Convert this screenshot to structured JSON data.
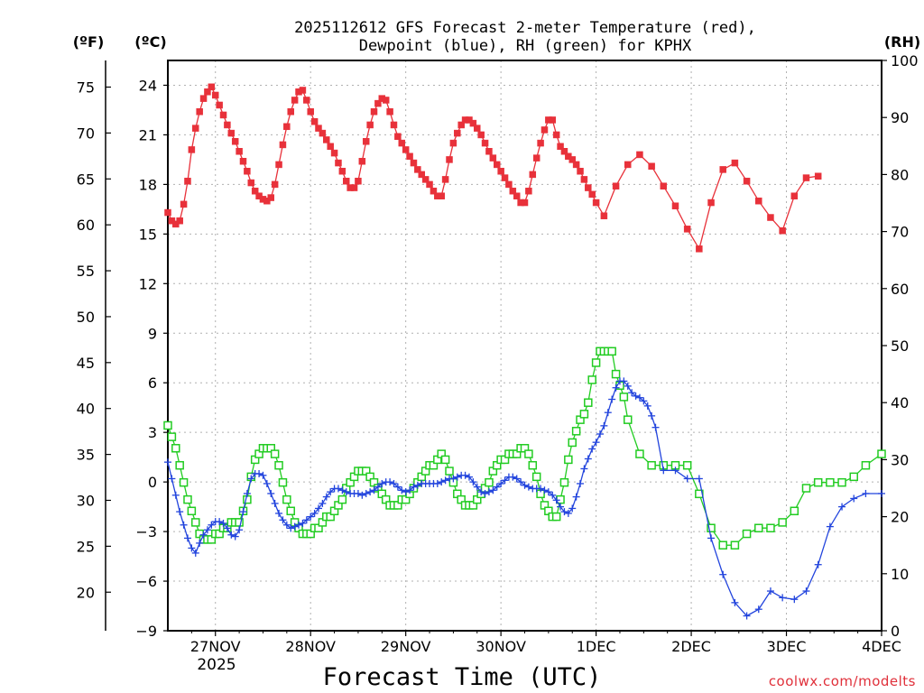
{
  "chart_data": {
    "type": "line",
    "title_line1": "2025112612 GFS Forecast 2-meter Temperature (red),",
    "title_line2": "Dewpoint (blue), RH (green) for KPHX",
    "xlabel": "Forecast Time (UTC)",
    "watermark": "coolwx.com/modelts",
    "unit_f": "(ºF)",
    "unit_c": "(ºC)",
    "unit_rh": "(RH)",
    "year_label": "2025",
    "x_range_hours": [
      12,
      192
    ],
    "c_range": [
      -9,
      25.5
    ],
    "rh_range": [
      0,
      100
    ],
    "x_ticks": [
      {
        "h": 24,
        "label": "27NOV"
      },
      {
        "h": 48,
        "label": "28NOV"
      },
      {
        "h": 72,
        "label": "29NOV"
      },
      {
        "h": 96,
        "label": "30NOV"
      },
      {
        "h": 120,
        "label": "1DEC"
      },
      {
        "h": 144,
        "label": "2DEC"
      },
      {
        "h": 168,
        "label": "3DEC"
      },
      {
        "h": 192,
        "label": "4DEC"
      }
    ],
    "c_ticks": [
      "24",
      "21",
      "18",
      "15",
      "12",
      "9",
      "6",
      "3",
      "0",
      "−3",
      "−6",
      "−9"
    ],
    "f_ticks": [
      "75",
      "70",
      "65",
      "60",
      "55",
      "50",
      "45",
      "40",
      "35",
      "30",
      "25",
      "20"
    ],
    "rh_ticks": [
      "100",
      "90",
      "80",
      "70",
      "60",
      "50",
      "40",
      "30",
      "20",
      "10",
      "0"
    ],
    "temperature_c": [
      [
        12,
        16.3
      ],
      [
        13,
        15.8
      ],
      [
        14,
        15.6
      ],
      [
        15,
        15.8
      ],
      [
        16,
        16.8
      ],
      [
        17,
        18.2
      ],
      [
        18,
        20.1
      ],
      [
        19,
        21.4
      ],
      [
        20,
        22.4
      ],
      [
        21,
        23.2
      ],
      [
        22,
        23.6
      ],
      [
        23,
        23.9
      ],
      [
        24,
        23.4
      ],
      [
        25,
        22.8
      ],
      [
        26,
        22.2
      ],
      [
        27,
        21.6
      ],
      [
        28,
        21.1
      ],
      [
        29,
        20.6
      ],
      [
        30,
        20.0
      ],
      [
        31,
        19.4
      ],
      [
        32,
        18.8
      ],
      [
        33,
        18.1
      ],
      [
        34,
        17.6
      ],
      [
        35,
        17.3
      ],
      [
        36,
        17.1
      ],
      [
        37,
        17.0
      ],
      [
        38,
        17.2
      ],
      [
        39,
        18.0
      ],
      [
        40,
        19.2
      ],
      [
        41,
        20.4
      ],
      [
        42,
        21.5
      ],
      [
        43,
        22.4
      ],
      [
        44,
        23.1
      ],
      [
        45,
        23.6
      ],
      [
        46,
        23.7
      ],
      [
        47,
        23.1
      ],
      [
        48,
        22.4
      ],
      [
        49,
        21.8
      ],
      [
        50,
        21.4
      ],
      [
        51,
        21.1
      ],
      [
        52,
        20.7
      ],
      [
        53,
        20.3
      ],
      [
        54,
        19.9
      ],
      [
        55,
        19.3
      ],
      [
        56,
        18.8
      ],
      [
        57,
        18.2
      ],
      [
        58,
        17.8
      ],
      [
        59,
        17.8
      ],
      [
        60,
        18.2
      ],
      [
        61,
        19.4
      ],
      [
        62,
        20.6
      ],
      [
        63,
        21.6
      ],
      [
        64,
        22.4
      ],
      [
        65,
        22.9
      ],
      [
        66,
        23.2
      ],
      [
        67,
        23.1
      ],
      [
        68,
        22.4
      ],
      [
        69,
        21.6
      ],
      [
        70,
        20.9
      ],
      [
        71,
        20.5
      ],
      [
        72,
        20.1
      ],
      [
        73,
        19.7
      ],
      [
        74,
        19.3
      ],
      [
        75,
        18.9
      ],
      [
        76,
        18.6
      ],
      [
        77,
        18.3
      ],
      [
        78,
        18.0
      ],
      [
        79,
        17.6
      ],
      [
        80,
        17.3
      ],
      [
        81,
        17.3
      ],
      [
        82,
        18.3
      ],
      [
        83,
        19.5
      ],
      [
        84,
        20.5
      ],
      [
        85,
        21.1
      ],
      [
        86,
        21.6
      ],
      [
        87,
        21.9
      ],
      [
        88,
        21.9
      ],
      [
        89,
        21.7
      ],
      [
        90,
        21.4
      ],
      [
        91,
        21.0
      ],
      [
        92,
        20.5
      ],
      [
        93,
        20.0
      ],
      [
        94,
        19.6
      ],
      [
        95,
        19.2
      ],
      [
        96,
        18.8
      ],
      [
        97,
        18.4
      ],
      [
        98,
        18.0
      ],
      [
        99,
        17.6
      ],
      [
        100,
        17.3
      ],
      [
        101,
        16.9
      ],
      [
        102,
        16.9
      ],
      [
        103,
        17.6
      ],
      [
        104,
        18.6
      ],
      [
        105,
        19.6
      ],
      [
        106,
        20.5
      ],
      [
        107,
        21.3
      ],
      [
        108,
        21.9
      ],
      [
        109,
        21.9
      ],
      [
        110,
        21.0
      ],
      [
        111,
        20.3
      ],
      [
        112,
        20.0
      ],
      [
        113,
        19.7
      ],
      [
        114,
        19.5
      ],
      [
        115,
        19.2
      ],
      [
        116,
        18.8
      ],
      [
        117,
        18.3
      ],
      [
        118,
        17.8
      ],
      [
        119,
        17.4
      ],
      [
        120,
        16.9
      ],
      [
        122,
        16.1
      ],
      [
        125,
        17.9
      ],
      [
        128,
        19.2
      ],
      [
        131,
        19.8
      ],
      [
        134,
        19.1
      ],
      [
        137,
        17.9
      ],
      [
        140,
        16.7
      ],
      [
        143,
        15.3
      ],
      [
        146,
        14.1
      ],
      [
        149,
        16.9
      ],
      [
        152,
        18.9
      ],
      [
        155,
        19.3
      ],
      [
        158,
        18.2
      ],
      [
        161,
        17.0
      ],
      [
        164,
        16.0
      ],
      [
        167,
        15.2
      ],
      [
        170,
        17.3
      ],
      [
        173,
        18.4
      ],
      [
        176,
        18.5
      ]
    ],
    "dewpoint_c": [
      [
        12,
        1.2
      ],
      [
        13,
        0.2
      ],
      [
        14,
        -0.8
      ],
      [
        15,
        -1.8
      ],
      [
        16,
        -2.6
      ],
      [
        17,
        -3.4
      ],
      [
        18,
        -4.0
      ],
      [
        19,
        -4.3
      ],
      [
        20,
        -3.7
      ],
      [
        21,
        -3.2
      ],
      [
        22,
        -2.9
      ],
      [
        23,
        -2.6
      ],
      [
        24,
        -2.4
      ],
      [
        25,
        -2.4
      ],
      [
        26,
        -2.5
      ],
      [
        27,
        -2.8
      ],
      [
        28,
        -3.2
      ],
      [
        29,
        -3.3
      ],
      [
        30,
        -2.9
      ],
      [
        31,
        -1.8
      ],
      [
        32,
        -0.7
      ],
      [
        33,
        0.2
      ],
      [
        34,
        0.5
      ],
      [
        35,
        0.5
      ],
      [
        36,
        0.4
      ],
      [
        37,
        -0.1
      ],
      [
        38,
        -0.7
      ],
      [
        39,
        -1.3
      ],
      [
        40,
        -1.9
      ],
      [
        41,
        -2.3
      ],
      [
        42,
        -2.6
      ],
      [
        43,
        -2.8
      ],
      [
        44,
        -2.7
      ],
      [
        45,
        -2.6
      ],
      [
        46,
        -2.5
      ],
      [
        47,
        -2.3
      ],
      [
        48,
        -2.1
      ],
      [
        49,
        -1.9
      ],
      [
        50,
        -1.6
      ],
      [
        51,
        -1.3
      ],
      [
        52,
        -0.9
      ],
      [
        53,
        -0.6
      ],
      [
        54,
        -0.4
      ],
      [
        55,
        -0.4
      ],
      [
        56,
        -0.5
      ],
      [
        57,
        -0.6
      ],
      [
        58,
        -0.7
      ],
      [
        59,
        -0.7
      ],
      [
        60,
        -0.7
      ],
      [
        61,
        -0.8
      ],
      [
        62,
        -0.7
      ],
      [
        63,
        -0.6
      ],
      [
        64,
        -0.5
      ],
      [
        65,
        -0.3
      ],
      [
        66,
        -0.1
      ],
      [
        67,
        0.0
      ],
      [
        68,
        0.0
      ],
      [
        69,
        -0.1
      ],
      [
        70,
        -0.3
      ],
      [
        71,
        -0.5
      ],
      [
        72,
        -0.6
      ],
      [
        73,
        -0.5
      ],
      [
        74,
        -0.3
      ],
      [
        75,
        -0.2
      ],
      [
        76,
        -0.1
      ],
      [
        77,
        -0.1
      ],
      [
        78,
        -0.1
      ],
      [
        79,
        -0.1
      ],
      [
        80,
        -0.1
      ],
      [
        81,
        0.0
      ],
      [
        82,
        0.1
      ],
      [
        83,
        0.2
      ],
      [
        84,
        0.2
      ],
      [
        85,
        0.3
      ],
      [
        86,
        0.4
      ],
      [
        87,
        0.4
      ],
      [
        88,
        0.3
      ],
      [
        89,
        0.0
      ],
      [
        90,
        -0.3
      ],
      [
        91,
        -0.6
      ],
      [
        92,
        -0.7
      ],
      [
        93,
        -0.6
      ],
      [
        94,
        -0.5
      ],
      [
        95,
        -0.3
      ],
      [
        96,
        -0.1
      ],
      [
        97,
        0.1
      ],
      [
        98,
        0.3
      ],
      [
        99,
        0.3
      ],
      [
        100,
        0.2
      ],
      [
        101,
        0.0
      ],
      [
        102,
        -0.2
      ],
      [
        103,
        -0.3
      ],
      [
        104,
        -0.4
      ],
      [
        105,
        -0.4
      ],
      [
        106,
        -0.4
      ],
      [
        107,
        -0.5
      ],
      [
        108,
        -0.6
      ],
      [
        109,
        -0.8
      ],
      [
        110,
        -1.1
      ],
      [
        111,
        -1.5
      ],
      [
        112,
        -1.8
      ],
      [
        113,
        -1.9
      ],
      [
        114,
        -1.6
      ],
      [
        115,
        -0.9
      ],
      [
        116,
        -0.1
      ],
      [
        117,
        0.8
      ],
      [
        118,
        1.4
      ],
      [
        119,
        2.0
      ],
      [
        120,
        2.4
      ],
      [
        121,
        2.9
      ],
      [
        122,
        3.4
      ],
      [
        123,
        4.2
      ],
      [
        124,
        5.0
      ],
      [
        125,
        5.7
      ],
      [
        126,
        6.1
      ],
      [
        127,
        6.1
      ],
      [
        128,
        5.8
      ],
      [
        129,
        5.4
      ],
      [
        130,
        5.2
      ],
      [
        131,
        5.1
      ],
      [
        132,
        4.9
      ],
      [
        133,
        4.6
      ],
      [
        134,
        4.0
      ],
      [
        135,
        3.3
      ],
      [
        137,
        0.7
      ],
      [
        140,
        0.7
      ],
      [
        143,
        0.2
      ],
      [
        146,
        0.2
      ],
      [
        149,
        -3.4
      ],
      [
        152,
        -5.6
      ],
      [
        155,
        -7.3
      ],
      [
        158,
        -8.1
      ],
      [
        161,
        -7.7
      ],
      [
        164,
        -6.6
      ],
      [
        167,
        -7.0
      ],
      [
        170,
        -7.1
      ],
      [
        173,
        -6.6
      ],
      [
        176,
        -5.0
      ],
      [
        179,
        -2.7
      ],
      [
        182,
        -1.5
      ],
      [
        185,
        -1.0
      ],
      [
        188,
        -0.7
      ],
      [
        192,
        -0.7
      ]
    ],
    "rh_pct": [
      [
        12,
        36
      ],
      [
        13,
        34
      ],
      [
        14,
        32
      ],
      [
        15,
        29
      ],
      [
        16,
        26
      ],
      [
        17,
        23
      ],
      [
        18,
        21
      ],
      [
        19,
        19
      ],
      [
        20,
        17
      ],
      [
        21,
        16
      ],
      [
        22,
        16
      ],
      [
        23,
        16
      ],
      [
        24,
        17
      ],
      [
        25,
        17
      ],
      [
        26,
        18
      ],
      [
        27,
        18
      ],
      [
        28,
        19
      ],
      [
        29,
        19
      ],
      [
        30,
        19
      ],
      [
        31,
        21
      ],
      [
        32,
        23
      ],
      [
        33,
        27
      ],
      [
        34,
        30
      ],
      [
        35,
        31
      ],
      [
        36,
        32
      ],
      [
        37,
        32
      ],
      [
        38,
        32
      ],
      [
        39,
        31
      ],
      [
        40,
        29
      ],
      [
        41,
        26
      ],
      [
        42,
        23
      ],
      [
        43,
        21
      ],
      [
        44,
        19
      ],
      [
        45,
        18
      ],
      [
        46,
        17
      ],
      [
        47,
        17
      ],
      [
        48,
        17
      ],
      [
        49,
        18
      ],
      [
        50,
        18
      ],
      [
        51,
        19
      ],
      [
        52,
        20
      ],
      [
        53,
        20
      ],
      [
        54,
        21
      ],
      [
        55,
        22
      ],
      [
        56,
        23
      ],
      [
        57,
        25
      ],
      [
        58,
        26
      ],
      [
        59,
        27
      ],
      [
        60,
        28
      ],
      [
        61,
        28
      ],
      [
        62,
        28
      ],
      [
        63,
        27
      ],
      [
        64,
        26
      ],
      [
        65,
        25
      ],
      [
        66,
        24
      ],
      [
        67,
        23
      ],
      [
        68,
        22
      ],
      [
        69,
        22
      ],
      [
        70,
        22
      ],
      [
        71,
        23
      ],
      [
        72,
        23
      ],
      [
        73,
        24
      ],
      [
        74,
        25
      ],
      [
        75,
        26
      ],
      [
        76,
        27
      ],
      [
        77,
        28
      ],
      [
        78,
        29
      ],
      [
        79,
        29
      ],
      [
        80,
        30
      ],
      [
        81,
        31
      ],
      [
        82,
        30
      ],
      [
        83,
        28
      ],
      [
        84,
        26
      ],
      [
        85,
        24
      ],
      [
        86,
        23
      ],
      [
        87,
        22
      ],
      [
        88,
        22
      ],
      [
        89,
        22
      ],
      [
        90,
        23
      ],
      [
        91,
        24
      ],
      [
        92,
        25
      ],
      [
        93,
        26
      ],
      [
        94,
        28
      ],
      [
        95,
        29
      ],
      [
        96,
        30
      ],
      [
        97,
        30
      ],
      [
        98,
        31
      ],
      [
        99,
        31
      ],
      [
        100,
        31
      ],
      [
        101,
        32
      ],
      [
        102,
        32
      ],
      [
        103,
        31
      ],
      [
        104,
        29
      ],
      [
        105,
        27
      ],
      [
        106,
        24
      ],
      [
        107,
        22
      ],
      [
        108,
        21
      ],
      [
        109,
        20
      ],
      [
        110,
        20
      ],
      [
        111,
        23
      ],
      [
        112,
        26
      ],
      [
        113,
        30
      ],
      [
        114,
        33
      ],
      [
        115,
        35
      ],
      [
        116,
        37
      ],
      [
        117,
        38
      ],
      [
        118,
        40
      ],
      [
        119,
        44
      ],
      [
        120,
        47
      ],
      [
        121,
        49
      ],
      [
        122,
        49
      ],
      [
        123,
        49
      ],
      [
        124,
        49
      ],
      [
        125,
        45
      ],
      [
        126,
        43
      ],
      [
        127,
        41
      ],
      [
        128,
        37
      ],
      [
        131,
        31
      ],
      [
        134,
        29
      ],
      [
        137,
        29
      ],
      [
        140,
        29
      ],
      [
        143,
        29
      ],
      [
        146,
        24
      ],
      [
        149,
        18
      ],
      [
        152,
        15
      ],
      [
        155,
        15
      ],
      [
        158,
        17
      ],
      [
        161,
        18
      ],
      [
        164,
        18
      ],
      [
        167,
        19
      ],
      [
        170,
        21
      ],
      [
        173,
        25
      ],
      [
        176,
        26
      ],
      [
        179,
        26
      ],
      [
        182,
        26
      ],
      [
        185,
        27
      ],
      [
        188,
        29
      ],
      [
        192,
        31
      ]
    ]
  }
}
